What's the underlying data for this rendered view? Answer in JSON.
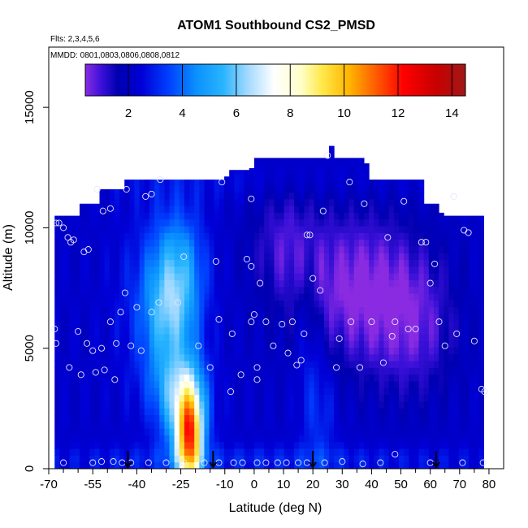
{
  "chart_data": {
    "type": "heatmap",
    "title": "ATOM1 Southbound CS2_PMSD",
    "subtitle_flights": "Flts: 2,3,4,5,6",
    "subtitle_dates": "MMDD: 0801,0803,0806,0808,0812",
    "xlabel": "Latitude (deg N)",
    "ylabel": "Altitude (m)",
    "xlim": [
      -70,
      85
    ],
    "ylim": [
      0,
      17500
    ],
    "x_ticks": [
      -70,
      -55,
      -40,
      -25,
      -10,
      0,
      10,
      20,
      30,
      40,
      50,
      60,
      70,
      80
    ],
    "x_tick_labels": [
      "-70",
      "-55",
      "-40",
      "-25",
      "-10",
      "0",
      "10",
      "20",
      "30",
      "40",
      "50",
      "60",
      "70",
      "80"
    ],
    "x_minor_ticks": [
      -65,
      -60,
      -50,
      -45,
      -35,
      -30,
      -20,
      -15,
      -5,
      5,
      15,
      25,
      35,
      45,
      55,
      65,
      75
    ],
    "y_ticks": [
      0,
      5000,
      10000,
      15000
    ],
    "y_tick_labels": [
      "0",
      "5000",
      "10000",
      "15000"
    ],
    "colorbar": {
      "range": [
        0.4,
        14.5
      ],
      "ticks": [
        2,
        4,
        6,
        8,
        10,
        12,
        14
      ],
      "tick_labels": [
        "2",
        "4",
        "6",
        "8",
        "10",
        "12",
        "14"
      ],
      "stops": [
        {
          "value": 0.4,
          "color": "#8a2be2"
        },
        {
          "value": 1.0,
          "color": "#3a10d8"
        },
        {
          "value": 1.6,
          "color": "#0000b0"
        },
        {
          "value": 2.5,
          "color": "#0000d8"
        },
        {
          "value": 3.5,
          "color": "#0040ff"
        },
        {
          "value": 4.5,
          "color": "#0a90ff"
        },
        {
          "value": 5.5,
          "color": "#28b4ff"
        },
        {
          "value": 6.4,
          "color": "#a0d8ff"
        },
        {
          "value": 7.4,
          "color": "#ffffff"
        },
        {
          "value": 8.4,
          "color": "#ffffc8"
        },
        {
          "value": 9.2,
          "color": "#ffe848"
        },
        {
          "value": 10.2,
          "color": "#ffb400"
        },
        {
          "value": 11.2,
          "color": "#ff5a00"
        },
        {
          "value": 12.2,
          "color": "#ff0000"
        },
        {
          "value": 13.4,
          "color": "#c80000"
        },
        {
          "value": 14.5,
          "color": "#a01818"
        }
      ]
    },
    "profile_latitudes": [
      -43,
      -14,
      20,
      62
    ],
    "sample_points": [
      [
        -67.5,
        10200
      ],
      [
        -66.5,
        10200
      ],
      [
        -65,
        10000
      ],
      [
        -63.5,
        9600
      ],
      [
        -62.5,
        9400
      ],
      [
        -61.5,
        9500
      ],
      [
        -58,
        9000
      ],
      [
        -56.5,
        9100
      ],
      [
        -53.5,
        11600
      ],
      [
        -51.5,
        10700
      ],
      [
        -49,
        10800
      ],
      [
        -43.5,
        11600
      ],
      [
        -37,
        11300
      ],
      [
        -35,
        11400
      ],
      [
        -32,
        12000
      ],
      [
        -24,
        8800
      ],
      [
        -11,
        11900
      ],
      [
        -1,
        11200
      ],
      [
        -68,
        5800
      ],
      [
        -67.5,
        5200
      ],
      [
        -60,
        5700
      ],
      [
        -57,
        5200
      ],
      [
        -55,
        4900
      ],
      [
        -52,
        5000
      ],
      [
        -49,
        6100
      ],
      [
        -47,
        5200
      ],
      [
        -45.5,
        6500
      ],
      [
        -44,
        7300
      ],
      [
        -42,
        5100
      ],
      [
        -40,
        6700
      ],
      [
        -38.5,
        4900
      ],
      [
        -35,
        6500
      ],
      [
        -32.5,
        6900
      ],
      [
        -26,
        6900
      ],
      [
        -19,
        5100
      ],
      [
        -15,
        4200
      ],
      [
        -12,
        6200
      ],
      [
        -7.5,
        5600
      ],
      [
        -4.5,
        3900
      ],
      [
        -1,
        6100
      ],
      [
        0,
        6400
      ],
      [
        1,
        4200
      ],
      [
        1,
        3700
      ],
      [
        2,
        7700
      ],
      [
        4,
        6100
      ],
      [
        6.5,
        5100
      ],
      [
        9.5,
        6000
      ],
      [
        11.5,
        4800
      ],
      [
        13,
        6100
      ],
      [
        14.5,
        4300
      ],
      [
        16,
        4500
      ],
      [
        17,
        5600
      ],
      [
        18,
        9700
      ],
      [
        19,
        9700
      ],
      [
        20,
        7900
      ],
      [
        22.5,
        7400
      ],
      [
        23.5,
        10700
      ],
      [
        28,
        4200
      ],
      [
        29,
        5400
      ],
      [
        32.5,
        11900
      ],
      [
        33,
        6100
      ],
      [
        36,
        4200
      ],
      [
        37.5,
        11000
      ],
      [
        40,
        6100
      ],
      [
        44,
        4400
      ],
      [
        45.5,
        9600
      ],
      [
        47,
        5500
      ],
      [
        48,
        6100
      ],
      [
        51,
        11100
      ],
      [
        52.5,
        5800
      ],
      [
        55,
        5800
      ],
      [
        57,
        9400
      ],
      [
        58.5,
        9400
      ],
      [
        60,
        7700
      ],
      [
        61.5,
        8500
      ],
      [
        63,
        6100
      ],
      [
        65,
        5100
      ],
      [
        68,
        11300
      ],
      [
        69,
        5600
      ],
      [
        71.5,
        9900
      ],
      [
        73,
        9800
      ],
      [
        75,
        5300
      ],
      [
        77.5,
        3300
      ],
      [
        78.5,
        3200
      ],
      [
        -63,
        4200
      ],
      [
        -54,
        4000
      ],
      [
        -51,
        4100
      ],
      [
        -47.5,
        3700
      ],
      [
        -65,
        250
      ],
      [
        -55,
        250
      ],
      [
        -52,
        300
      ],
      [
        -48,
        300
      ],
      [
        -45,
        250
      ],
      [
        -42,
        250
      ],
      [
        -36,
        250
      ],
      [
        -30,
        250
      ],
      [
        -24,
        250
      ],
      [
        -17,
        250
      ],
      [
        -12,
        250
      ],
      [
        -7,
        250
      ],
      [
        -4,
        250
      ],
      [
        1,
        250
      ],
      [
        4,
        250
      ],
      [
        8,
        250
      ],
      [
        11,
        250
      ],
      [
        15,
        250
      ],
      [
        18,
        250
      ],
      [
        24,
        250
      ],
      [
        30,
        300
      ],
      [
        37,
        200
      ],
      [
        43,
        250
      ],
      [
        48,
        600
      ],
      [
        60,
        250
      ],
      [
        71,
        250
      ],
      [
        78,
        250
      ],
      [
        -59,
        3900
      ],
      [
        -8,
        3200
      ],
      [
        25,
        13000
      ],
      [
        -1,
        8400
      ],
      [
        -2.5,
        8700
      ],
      [
        -13,
        8600
      ]
    ]
  }
}
